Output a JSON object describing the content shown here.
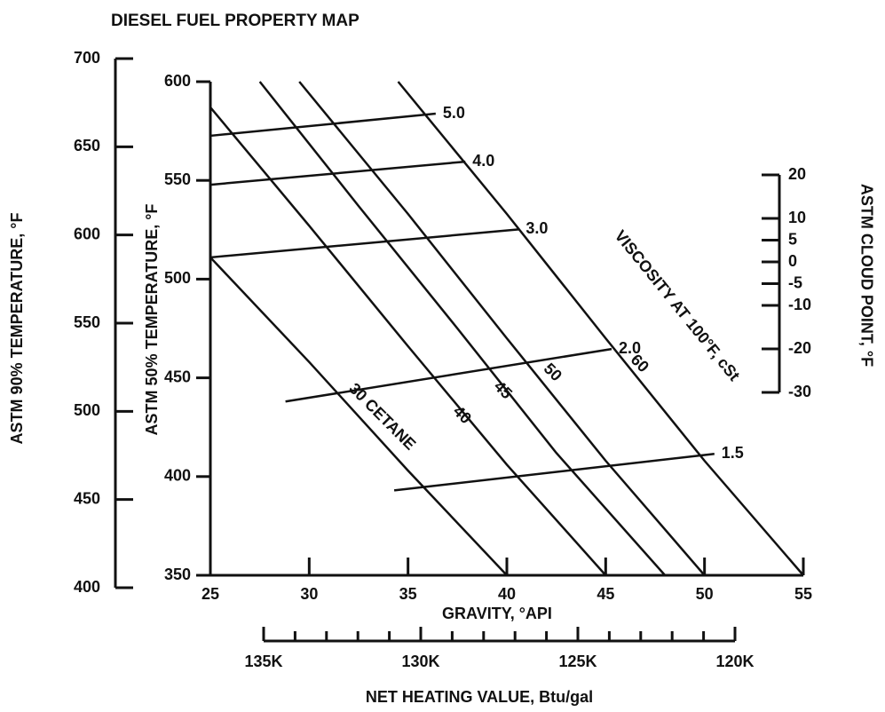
{
  "chart_data": {
    "type": "nomogram",
    "title": "DIESEL FUEL PROPERTY MAP",
    "xlabel": "GRAVITY, °API",
    "ylabel": "ASTM 50% TEMPERATURE, °F",
    "xlim": [
      25,
      55
    ],
    "xticks": [
      25,
      30,
      35,
      40,
      45,
      50,
      55
    ],
    "ylim": [
      350,
      600
    ],
    "yticks": [
      350,
      400,
      450,
      500,
      550,
      600
    ],
    "temp90_axis": {
      "label": "ASTM 90% TEMPERATURE, °F",
      "lim": [
        400,
        700
      ],
      "ticks": [
        400,
        450,
        500,
        550,
        600,
        650,
        700
      ]
    },
    "cloud_axis": {
      "label": "ASTM CLOUD POINT, °F",
      "lim": [
        -30,
        20
      ],
      "ticks": [
        20,
        10,
        5,
        0,
        -5,
        -10,
        -20,
        -30
      ]
    },
    "heating_axis": {
      "label": "NET HEATING VALUE, Btu/gal",
      "lim": [
        135000,
        120000
      ],
      "ticks": [
        {
          "value": 135000,
          "label": "135K"
        },
        {
          "value": 130000,
          "label": "130K"
        },
        {
          "value": 125000,
          "label": "125K"
        },
        {
          "value": 120000,
          "label": "120K"
        }
      ],
      "minor_ticks": [
        134000,
        133000,
        132000,
        131000,
        129000,
        128000,
        127000,
        126000,
        124000,
        123000,
        122000,
        121000
      ]
    },
    "cetane_curves": [
      {
        "name": "30 CETANE",
        "x": [
          25,
          30,
          35,
          40
        ],
        "y": [
          511,
          458,
          403,
          350
        ]
      },
      {
        "name": "40",
        "x": [
          25,
          30,
          35,
          40,
          45
        ],
        "y": [
          587,
          527,
          466,
          406,
          350
        ]
      },
      {
        "name": "45",
        "x": [
          27.5,
          32.5,
          37.5,
          42.5,
          48
        ],
        "y": [
          600,
          537,
          475,
          412,
          350
        ]
      },
      {
        "name": "50",
        "x": [
          29.5,
          35,
          40,
          45,
          50
        ],
        "y": [
          600,
          533,
          470,
          408,
          350
        ]
      },
      {
        "name": "60",
        "x": [
          34.5,
          40,
          45,
          50,
          55
        ],
        "y": [
          600,
          533,
          470,
          408,
          350
        ]
      }
    ],
    "viscosity_label": "VISCOSITY AT 100°F, cSt",
    "viscosity_lines": [
      {
        "name": "5.0",
        "x": [
          25,
          36.4
        ],
        "y": [
          572.6,
          583.8
        ]
      },
      {
        "name": "4.0",
        "x": [
          25,
          37.9
        ],
        "y": [
          547.8,
          559.5
        ]
      },
      {
        "name": "3.0",
        "x": [
          25,
          40.6
        ],
        "y": [
          511,
          525.2
        ]
      },
      {
        "name": "2.0",
        "x": [
          28.8,
          45.3
        ],
        "y": [
          438,
          464.6
        ]
      },
      {
        "name": "1.5",
        "x": [
          34.3,
          50.5
        ],
        "y": [
          393,
          411.5
        ]
      }
    ]
  }
}
